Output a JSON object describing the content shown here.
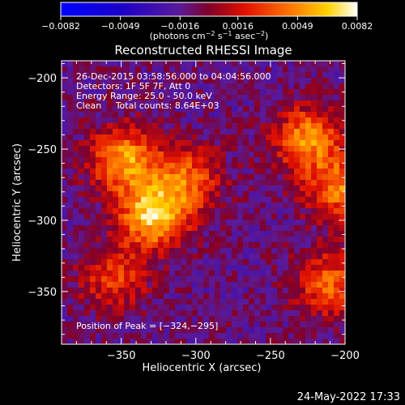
{
  "chart_data": {
    "type": "heatmap",
    "title": "Reconstructed RHESSI Image",
    "xlabel": "Heliocentric X (arcsec)",
    "ylabel": "Heliocentric Y (arcsec)",
    "xlim": [
      -390,
      -200
    ],
    "ylim": [
      -387,
      -188
    ],
    "x_ticks": [
      -350,
      -300,
      -250,
      -200
    ],
    "x_tick_labels": [
      "−350",
      "−300",
      "−250",
      "−200"
    ],
    "y_ticks": [
      -350,
      -300,
      -250,
      -200
    ],
    "y_tick_labels": [
      "−350",
      "−300",
      "−250",
      "−200"
    ],
    "grid": false,
    "colorbar": {
      "range": [
        -0.0082,
        0.0082
      ],
      "ticks": [
        -0.0082,
        -0.0049,
        -0.0016,
        0.0016,
        0.0049,
        0.0082
      ],
      "tick_labels": [
        "−0.0082",
        "−0.0049",
        "−0.0016",
        "0.0016",
        "0.0049",
        "0.0082"
      ],
      "units_base": "(photons cm",
      "units_exp1": "−2",
      "units_mid1": " s",
      "units_exp2": "−1",
      "units_mid2": " asec",
      "units_exp3": "−2",
      "units_end": ")"
    },
    "sources": [
      {
        "x": -328,
        "y": -296,
        "intensity": 0.0082
      },
      {
        "x": -348,
        "y": -257,
        "intensity": 0.0065
      },
      {
        "x": -305,
        "y": -270,
        "intensity": 0.0045
      },
      {
        "x": -225,
        "y": -243,
        "intensity": 0.006
      },
      {
        "x": -203,
        "y": -278,
        "intensity": 0.0055
      },
      {
        "x": -210,
        "y": -345,
        "intensity": 0.005
      },
      {
        "x": -355,
        "y": -340,
        "intensity": 0.004
      }
    ],
    "peak": [
      -324,
      -295
    ]
  },
  "annotations": {
    "time_range": "26-Dec-2015 03:58:56.000 to 04:04:56.000",
    "detectors": "Detectors: 1F 5F 7F, Att 0",
    "energy": "Energy Range: 25.0 - 50.0 keV",
    "clean": "Clean     Total counts: 8.64E+03",
    "peak_label": "Position of Peak = [−324,−295]"
  },
  "footer": {
    "date": "24-May-2022 17:33"
  }
}
